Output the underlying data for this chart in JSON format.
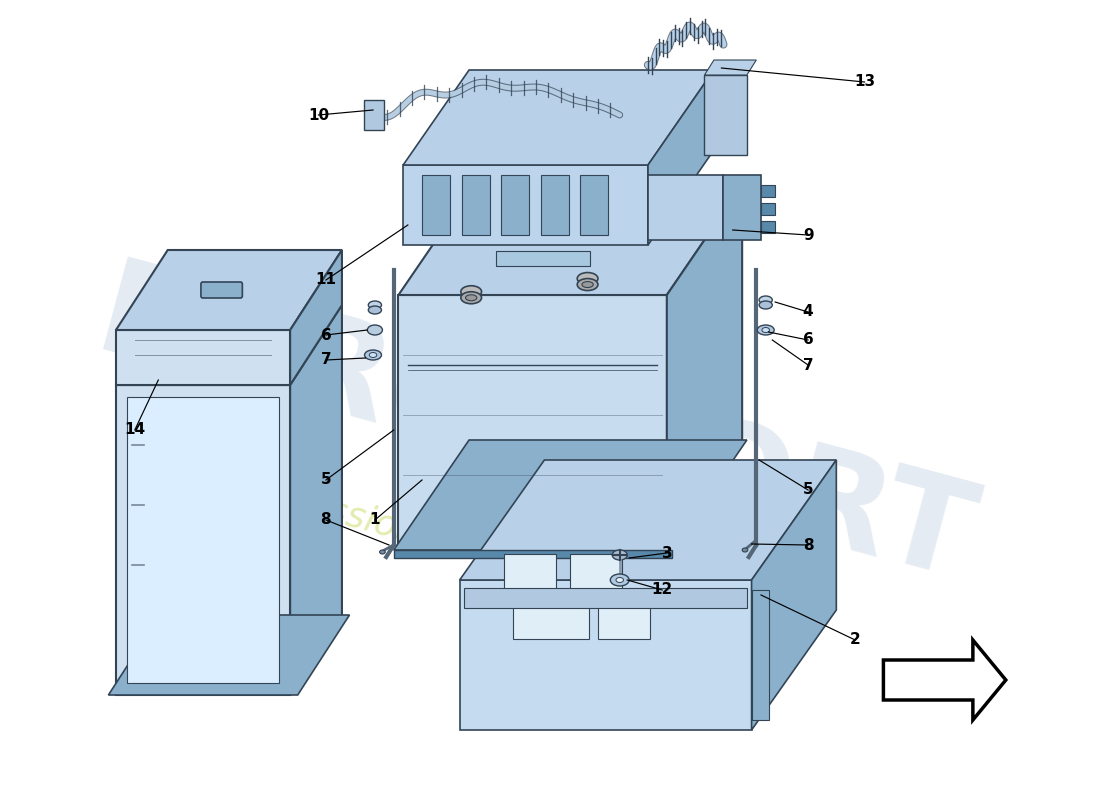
{
  "bg_color": "#ffffff",
  "lc": "#b8d0e8",
  "mc": "#8ab0cc",
  "dc": "#5888aa",
  "ec": "#3060808",
  "ln": "#334455",
  "wm1_color": "#aabfd8",
  "wm2_color": "#d8e890",
  "arrow_color": "#000000",
  "label_size": 11,
  "figsize": [
    11.0,
    8.0
  ],
  "dpi": 100
}
